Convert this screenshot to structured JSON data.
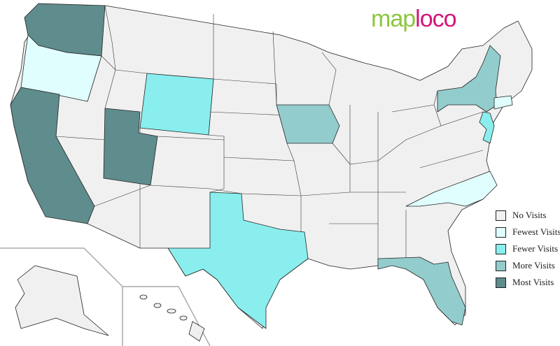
{
  "logo": {
    "part1": "map",
    "part2": "loco"
  },
  "colors": {
    "no": "#f0f0f0",
    "fewest": "#e0fefe",
    "fewer": "#8aeeee",
    "more": "#93cccc",
    "most": "#5f8c8c"
  },
  "legend": [
    {
      "label": "No Visits",
      "level": "no"
    },
    {
      "label": "Fewest Visits",
      "level": "fewest"
    },
    {
      "label": "Fewer Visits",
      "level": "fewer"
    },
    {
      "label": "More Visits",
      "level": "more"
    },
    {
      "label": "Most Visits",
      "level": "most"
    }
  ],
  "states": {
    "Washington": "most",
    "California": "most",
    "Utah": "most",
    "Oregon": "fewest",
    "North Carolina": "fewest",
    "Connecticut": "fewest",
    "Wyoming": "fewer",
    "Texas": "fewer",
    "New Jersey": "fewer",
    "Iowa": "more",
    "New York": "more",
    "Florida": "more"
  }
}
